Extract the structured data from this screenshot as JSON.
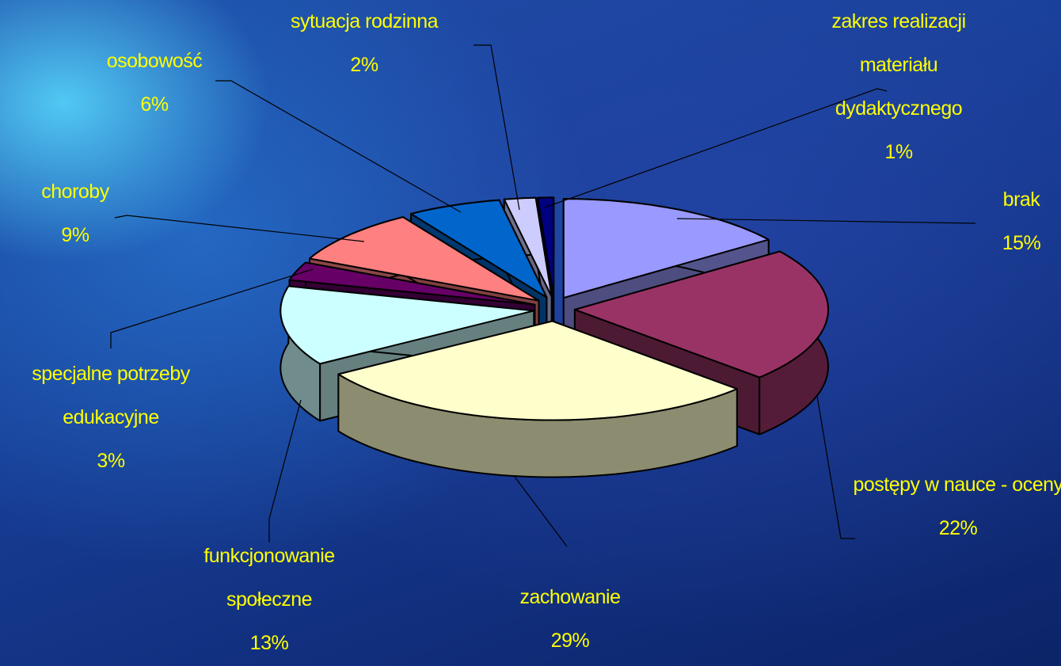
{
  "chart_data": {
    "type": "pie3d",
    "categories": [
      "brak",
      "postępy w nauce - oceny",
      "zachowanie",
      "funkcjonowanie społeczne",
      "specjalne potrzeby edukacyjne",
      "choroby",
      "osobowość",
      "sytuacja rodzinna",
      "zakres realizacji materiału dydaktycznego"
    ],
    "values": [
      15,
      22,
      29,
      13,
      3,
      9,
      6,
      2,
      1
    ],
    "value_labels": [
      "15%",
      "22%",
      "29%",
      "13%",
      "3%",
      "9%",
      "6%",
      "2%",
      "1%"
    ],
    "colors": [
      "#9999ff",
      "#993366",
      "#ffffcc",
      "#ccffff",
      "#660066",
      "#ff8080",
      "#0066cc",
      "#ccccff",
      "#000080"
    ]
  }
}
